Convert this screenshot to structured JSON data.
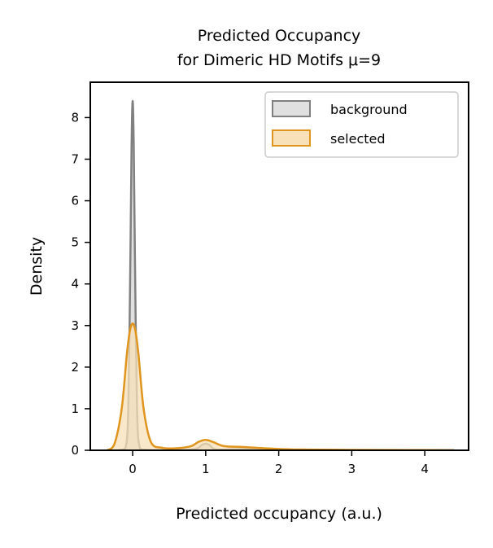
{
  "chart_data": {
    "type": "area",
    "title": "Predicted Occupancy\nfor Dimeric HD Motifs μ=9",
    "title_lines": [
      "Predicted Occupancy",
      "for Dimeric HD Motifs μ=9"
    ],
    "xlabel": "Predicted occupancy (a.u.)",
    "ylabel": "Density",
    "xlim": [
      -0.58,
      4.6
    ],
    "ylim": [
      0,
      8.85
    ],
    "xticks": [
      0,
      1,
      2,
      3,
      4
    ],
    "xtick_labels": [
      "0",
      "1",
      "2",
      "3",
      "4"
    ],
    "yticks": [
      0,
      1,
      2,
      3,
      4,
      5,
      6,
      7,
      8
    ],
    "ytick_labels": [
      "0",
      "1",
      "2",
      "3",
      "4",
      "5",
      "6",
      "7",
      "8"
    ],
    "grid": false,
    "legend_position": "top-right",
    "series": [
      {
        "name": "background",
        "line_color": "#808080",
        "fill_color": "#e0e0e0",
        "x": [
          -0.2,
          -0.1,
          -0.06,
          -0.03,
          -0.015,
          0,
          0.015,
          0.03,
          0.06,
          0.1,
          0.2,
          0.5,
          0.85,
          0.95,
          1.0,
          1.05,
          1.15,
          1.5,
          2.0,
          3.0,
          4.0,
          4.4
        ],
        "y": [
          0.0,
          0.05,
          1.0,
          4.8,
          7.3,
          8.4,
          7.3,
          4.8,
          1.0,
          0.05,
          0.01,
          0.0,
          0.03,
          0.13,
          0.16,
          0.13,
          0.02,
          0.03,
          0.01,
          0.0,
          0.0,
          0.0
        ]
      },
      {
        "name": "selected",
        "line_color": "#e0961e",
        "fill_color": "#f8e0b8",
        "x": [
          -0.35,
          -0.25,
          -0.15,
          -0.08,
          -0.04,
          0,
          0.04,
          0.08,
          0.15,
          0.25,
          0.4,
          0.6,
          0.8,
          0.9,
          1.0,
          1.1,
          1.25,
          1.5,
          1.8,
          2.2,
          3.0,
          4.0,
          4.4
        ],
        "y": [
          0.0,
          0.15,
          1.0,
          2.3,
          2.85,
          3.05,
          2.85,
          2.3,
          1.0,
          0.2,
          0.06,
          0.05,
          0.1,
          0.2,
          0.25,
          0.2,
          0.1,
          0.08,
          0.05,
          0.02,
          0.01,
          0.005,
          0.0
        ]
      }
    ]
  }
}
